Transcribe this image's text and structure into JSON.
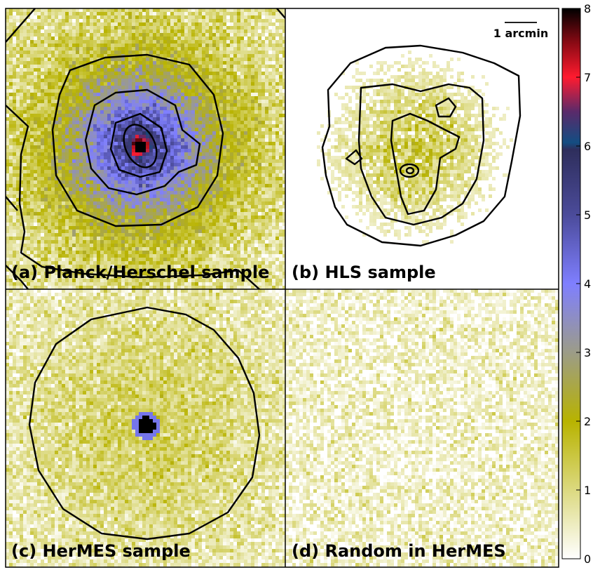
{
  "chart_data": {
    "type": "heatmap",
    "layout": "2x2 grid of stacked maps with shared colorbar",
    "panels": [
      {
        "id": "a",
        "label": "(a) Planck/Herschel sample",
        "peak_value": 7.5,
        "background_value": 1.0,
        "contours": 5
      },
      {
        "id": "b",
        "label": "(b) HLS sample",
        "peak_value": 1.8,
        "background_value": 0.0,
        "contours": 5
      },
      {
        "id": "c",
        "label": "(c) HerMES sample",
        "peak_value": 8.0,
        "background_value": 1.0,
        "contours": 1
      },
      {
        "id": "d",
        "label": "(d) Random in HerMES",
        "peak_value": 1.0,
        "background_value": 0.8,
        "contours": 0
      }
    ],
    "scale_bar": {
      "label": "1 arcmin"
    },
    "colorbar": {
      "range": [
        0,
        8
      ],
      "ticks": [
        0,
        1,
        2,
        3,
        4,
        5,
        6,
        7,
        8
      ],
      "colormap_stops": [
        {
          "value": 0,
          "color": "#ffffff"
        },
        {
          "value": 2,
          "color": "#b8b300"
        },
        {
          "value": 3,
          "color": "#9c9c88"
        },
        {
          "value": 4,
          "color": "#7f7fff"
        },
        {
          "value": 5,
          "color": "#4b4b9a"
        },
        {
          "value": 5.95,
          "color": "#2e2e5c"
        },
        {
          "value": 6.05,
          "color": "#134d82"
        },
        {
          "value": 6.5,
          "color": "#5a2a6a"
        },
        {
          "value": 7,
          "color": "#ff1b2f"
        },
        {
          "value": 7.5,
          "color": "#8a0a14"
        },
        {
          "value": 8,
          "color": "#000000"
        }
      ]
    }
  }
}
